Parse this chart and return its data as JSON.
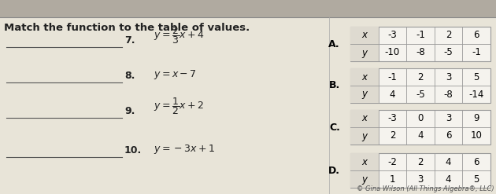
{
  "title": "Match the function to the table of values.",
  "eqs_text": [
    "7.  y = ⁄₂₃x + 4",
    "8.  y = x − 7",
    "9.  y = ½x + 2",
    "10.  y = −3x + 1"
  ],
  "eqs_math": [
    [
      "7.",
      "$y=\\dfrac{2}{3}x+4$"
    ],
    [
      "8.",
      "$y=x-7$"
    ],
    [
      "9.",
      "$y=\\dfrac{1}{2}x+2$"
    ],
    [
      "10.",
      "$y=-3x+1$"
    ]
  ],
  "tables": [
    {
      "label": "A.",
      "x": [
        "-3",
        "-1",
        "2",
        "6"
      ],
      "y": [
        "-10",
        "-8",
        "-5",
        "-1"
      ]
    },
    {
      "label": "B.",
      "x": [
        "-1",
        "2",
        "3",
        "5"
      ],
      "y": [
        "4",
        "-5",
        "-8",
        "-14"
      ]
    },
    {
      "label": "C.",
      "x": [
        "-3",
        "0",
        "3",
        "9"
      ],
      "y": [
        "2",
        "4",
        "6",
        "10"
      ]
    },
    {
      "label": "D.",
      "x": [
        "-2",
        "2",
        "4",
        "6"
      ],
      "y": [
        "1",
        "3",
        "4",
        "5"
      ]
    }
  ],
  "footer": "© Gina Wilson (All Things Algebra®, LLC)",
  "top_bar_color": "#b0aaa0",
  "bg_color": "#e8e4d8",
  "table_bg": "#f5f3ee",
  "table_border": "#999999",
  "header_bg": "#dedad0",
  "title_color": "#222222",
  "problem_color": "#222222",
  "footer_color": "#555555",
  "title_fontsize": 9.5,
  "num_fontsize": 9,
  "eq_fontsize": 9,
  "table_fontsize": 8.5,
  "footer_fontsize": 6
}
